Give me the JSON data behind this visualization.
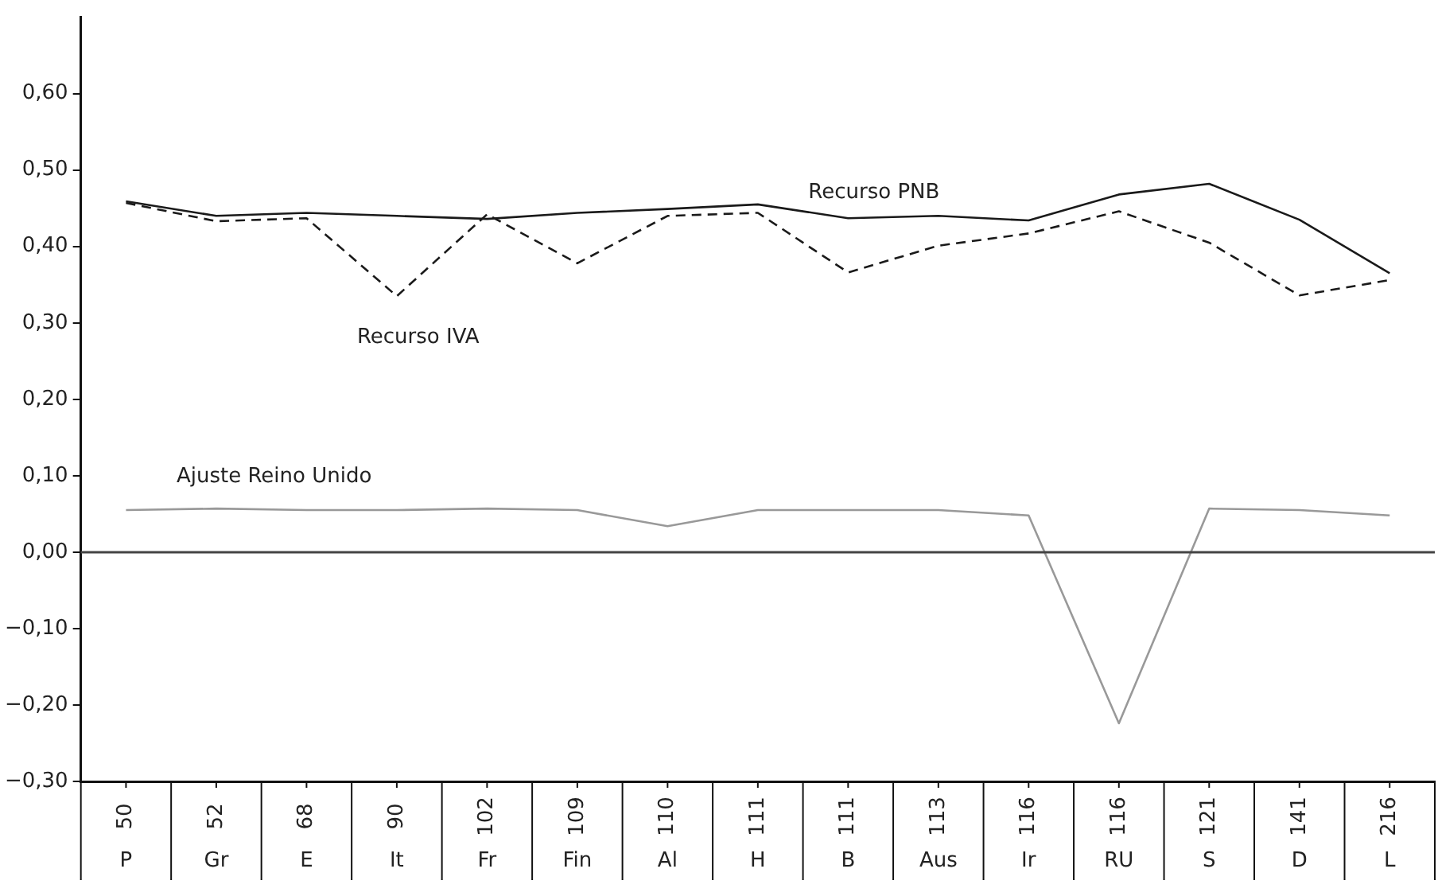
{
  "chart_data": {
    "type": "line",
    "categories": [
      "50\nP",
      "52\nGr",
      "68\nE",
      "90\nIt",
      "102\nFr",
      "109\nFin",
      "110\nAl",
      "111\nH",
      "111\nB",
      "113\nAus",
      "116\nIr",
      "116\nRU",
      "121\nS",
      "141\nD",
      "216\nL"
    ],
    "series": [
      {
        "name": "Recurso PNB",
        "color": "#1a1a1a",
        "line_style": "solid",
        "values": [
          0.459,
          0.44,
          0.444,
          0.44,
          0.436,
          0.444,
          0.449,
          0.455,
          0.437,
          0.44,
          0.434,
          0.468,
          0.482,
          0.435,
          0.365
        ]
      },
      {
        "name": "Recurso IVA",
        "color": "#1a1a1a",
        "line_style": "dashed",
        "values": [
          0.457,
          0.433,
          0.437,
          0.335,
          0.442,
          0.378,
          0.44,
          0.444,
          0.366,
          0.401,
          0.417,
          0.446,
          0.405,
          0.336,
          0.356
        ]
      },
      {
        "name": "Ajuste Reino Unido",
        "color": "#999999",
        "line_style": "solid",
        "values": [
          0.055,
          0.057,
          0.055,
          0.055,
          0.057,
          0.055,
          0.034,
          0.055,
          0.055,
          0.055,
          0.048,
          -0.224,
          0.057,
          0.055,
          0.048
        ]
      }
    ],
    "ylim": [
      -0.3,
      0.7
    ],
    "yticks": [
      {
        "value": -0.3,
        "label": "−0,30"
      },
      {
        "value": -0.2,
        "label": "−0,20"
      },
      {
        "value": -0.1,
        "label": "−0,10"
      },
      {
        "value": 0,
        "label": "0,00"
      },
      {
        "value": 0.1,
        "label": "0,10"
      },
      {
        "value": 0.2,
        "label": "0,20"
      },
      {
        "value": 0.3,
        "label": "0,30"
      },
      {
        "value": 0.4,
        "label": "0,40"
      },
      {
        "value": 0.5,
        "label": "0,50"
      },
      {
        "value": 0.6,
        "label": "0,60"
      }
    ],
    "ref_lines": [
      {
        "axis": "y",
        "value": 0,
        "color": "#444444"
      }
    ],
    "grid": false,
    "legend": false,
    "marker": "none"
  }
}
